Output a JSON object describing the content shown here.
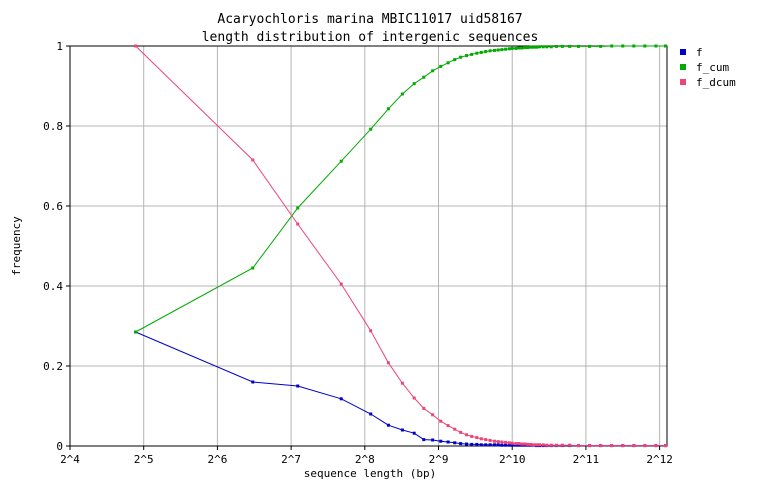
{
  "chart_data": {
    "type": "line",
    "title": "Acaryochloris marina MBIC11017 uid58167",
    "subtitle": "length distribution of intergenic sequences",
    "xlabel": "sequence length (bp)",
    "ylabel": "frequency",
    "x_scale": "log2",
    "xlim_log2": [
      4,
      12.1
    ],
    "ylim": [
      0,
      1
    ],
    "x_ticks": [
      {
        "v": 4,
        "label": "2^4"
      },
      {
        "v": 5,
        "label": "2^5"
      },
      {
        "v": 6,
        "label": "2^6"
      },
      {
        "v": 7,
        "label": "2^7"
      },
      {
        "v": 8,
        "label": "2^8"
      },
      {
        "v": 9,
        "label": "2^9"
      },
      {
        "v": 10,
        "label": "2^10"
      },
      {
        "v": 11,
        "label": "2^11"
      },
      {
        "v": 12,
        "label": "2^12"
      }
    ],
    "y_ticks": [
      {
        "v": 0,
        "label": "0"
      },
      {
        "v": 0.2,
        "label": "0.2"
      },
      {
        "v": 0.4,
        "label": "0.4"
      },
      {
        "v": 0.6,
        "label": "0.6"
      },
      {
        "v": 0.8,
        "label": "0.8"
      },
      {
        "v": 1,
        "label": "1"
      }
    ],
    "grid": true,
    "legend_position": "right",
    "x_log2": [
      4.89,
      6.48,
      7.09,
      7.68,
      8.08,
      8.32,
      8.51,
      8.67,
      8.8,
      8.92,
      9.03,
      9.13,
      9.22,
      9.3,
      9.38,
      9.45,
      9.52,
      9.58,
      9.64,
      9.7,
      9.76,
      9.81,
      9.86,
      9.91,
      9.96,
      10.0,
      10.05,
      10.09,
      10.13,
      10.17,
      10.21,
      10.25,
      10.29,
      10.33,
      10.37,
      10.42,
      10.47,
      10.53,
      10.6,
      10.68,
      10.78,
      10.9,
      11.05,
      11.2,
      11.35,
      11.5,
      11.65,
      11.8,
      11.95,
      12.08
    ],
    "series": [
      {
        "name": "f",
        "color": "#0000cc",
        "values": [
          0.285,
          0.16,
          0.15,
          0.118,
          0.08,
          0.052,
          0.04,
          0.032,
          0.016,
          0.015,
          0.012,
          0.01,
          0.008,
          0.006,
          0.005,
          0.004,
          0.004,
          0.003,
          0.003,
          0.003,
          0.003,
          0.003,
          0.002,
          0.002,
          0.002,
          0.002,
          0.002,
          0.002,
          0.002,
          0.002,
          0.002,
          0.002,
          0.002,
          0.001,
          0.001,
          0.001,
          0.001,
          0.001,
          0.001,
          0.001,
          0.001,
          0.001,
          0.001,
          0.001,
          0.001,
          0.001,
          0.001,
          0.001,
          0.001,
          0.001
        ]
      },
      {
        "name": "f_cum",
        "color": "#00aa00",
        "values": [
          0.285,
          0.445,
          0.595,
          0.712,
          0.792,
          0.843,
          0.88,
          0.906,
          0.922,
          0.938,
          0.949,
          0.958,
          0.966,
          0.972,
          0.976,
          0.979,
          0.982,
          0.984,
          0.986,
          0.988,
          0.989,
          0.99,
          0.991,
          0.992,
          0.993,
          0.994,
          0.994,
          0.995,
          0.995,
          0.996,
          0.996,
          0.997,
          0.997,
          0.997,
          0.998,
          0.998,
          0.998,
          0.998,
          0.999,
          0.999,
          0.999,
          0.999,
          0.999,
          0.999,
          1.0,
          1.0,
          1.0,
          1.0,
          1.0,
          1.0
        ]
      },
      {
        "name": "f_dcum",
        "color": "#ee4477",
        "values": [
          1.0,
          0.715,
          0.555,
          0.405,
          0.288,
          0.208,
          0.157,
          0.12,
          0.094,
          0.078,
          0.062,
          0.051,
          0.042,
          0.034,
          0.028,
          0.024,
          0.021,
          0.018,
          0.016,
          0.014,
          0.012,
          0.011,
          0.01,
          0.009,
          0.008,
          0.007,
          0.006,
          0.006,
          0.005,
          0.005,
          0.004,
          0.004,
          0.003,
          0.003,
          0.003,
          0.003,
          0.002,
          0.002,
          0.002,
          0.002,
          0.002,
          0.001,
          0.001,
          0.001,
          0.001,
          0.001,
          0.001,
          0.001,
          0.001,
          0.001
        ]
      }
    ]
  }
}
